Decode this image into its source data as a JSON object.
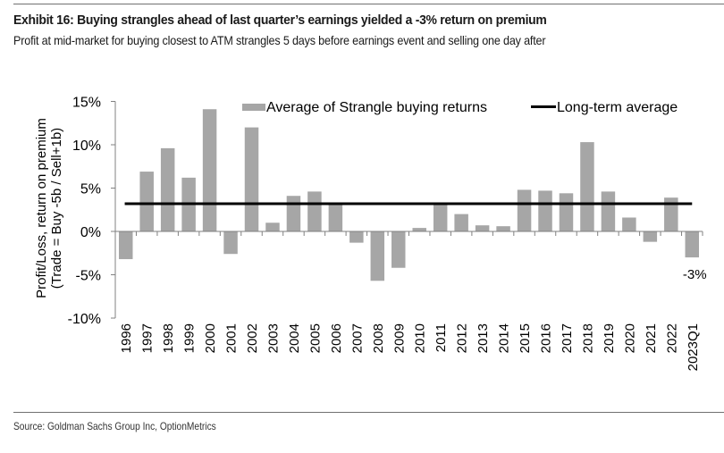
{
  "header": {
    "title": "Exhibit 16: Buying strangles ahead of last quarter’s earnings yielded a -3% return on premium",
    "subtitle": "Profit at mid-market for buying closest to ATM strangles 5 days before earnings event and selling one day after"
  },
  "footer": {
    "source": "Source: Goldman Sachs Group Inc, OptionMetrics"
  },
  "colors": {
    "bar": "#a6a6a6",
    "line": "#000000",
    "axis": "#808080"
  },
  "chart_data": {
    "type": "bar",
    "title": "",
    "xlabel": "",
    "ylabel_lines": [
      "Profit/Loss,  return on premium",
      "(Trade = Buy -5b / Sell+1b)"
    ],
    "ylim": [
      -10,
      15
    ],
    "yticks": [
      15,
      10,
      5,
      0,
      -5,
      -10
    ],
    "ytick_labels": [
      "15%",
      "10%",
      "5%",
      "0%",
      "-5%",
      "-10%"
    ],
    "grid": false,
    "legend_position": "top",
    "categories": [
      "1996",
      "1997",
      "1998",
      "1999",
      "2000",
      "2001",
      "2002",
      "2003",
      "2004",
      "2005",
      "2006",
      "2007",
      "2008",
      "2009",
      "2010",
      "2011",
      "2012",
      "2013",
      "2014",
      "2015",
      "2016",
      "2017",
      "2018",
      "2019",
      "2020",
      "2021",
      "2022",
      "2023Q1"
    ],
    "series": [
      {
        "name": "Average of Strangle buying returns",
        "type": "bar",
        "values": [
          -3.2,
          6.9,
          9.6,
          6.2,
          14.1,
          -2.6,
          12.0,
          1.0,
          4.1,
          4.6,
          3.1,
          -1.3,
          -5.7,
          -4.2,
          0.4,
          3.1,
          2.0,
          0.7,
          0.6,
          4.8,
          4.7,
          4.4,
          10.3,
          4.6,
          1.6,
          -1.2,
          3.9,
          -3.0
        ]
      },
      {
        "name": "Long-term average",
        "type": "hline",
        "value": 3.2
      }
    ],
    "annotations": [
      {
        "category": "2023Q1",
        "text": "-3%"
      }
    ]
  }
}
